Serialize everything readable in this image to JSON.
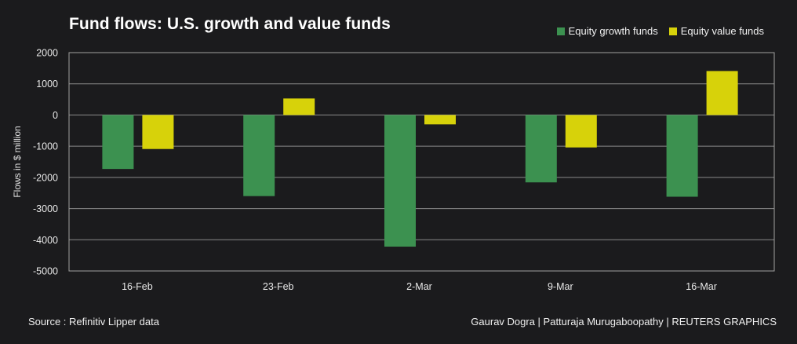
{
  "chart_data": {
    "type": "bar",
    "title": "Fund flows: U.S. growth and value funds",
    "xlabel": "",
    "ylabel": "Flows in $ million",
    "ylim": [
      -5000,
      2000
    ],
    "yticks": [
      2000,
      1000,
      0,
      -1000,
      -2000,
      -3000,
      -4000,
      -5000
    ],
    "grid": true,
    "legend_position": "top-right",
    "categories": [
      "16-Feb",
      "23-Feb",
      "2-Mar",
      "9-Mar",
      "16-Mar"
    ],
    "series": [
      {
        "name": "Equity growth funds",
        "color": "#3c9150",
        "values": [
          -1730,
          -2600,
          -4220,
          -2160,
          -2620
        ]
      },
      {
        "name": "Equity value funds",
        "color": "#d7d20a",
        "values": [
          -1090,
          530,
          -300,
          -1040,
          1410
        ]
      }
    ]
  },
  "footer": {
    "source": "Source : Refinitiv Lipper data",
    "credit": "Gaurav Dogra | Patturaja Murugaboopathy | REUTERS GRAPHICS"
  }
}
